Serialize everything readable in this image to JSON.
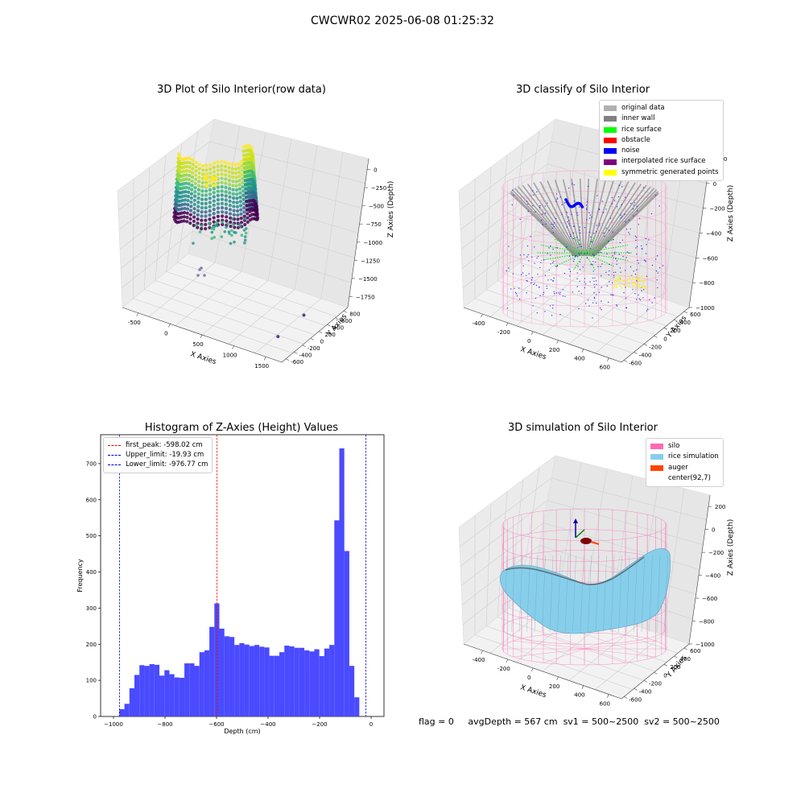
{
  "suptitle": "CWCWR02 2025-06-08 01:25:32",
  "status": {
    "flag": "flag = 0",
    "avg_depth": "avgDepth = 567 cm",
    "sv1": "sv1 = 500~2500",
    "sv2": "sv2 = 500~2500"
  },
  "colors": {
    "hist_bar": "#4a4aff",
    "first_peak": "#ff0000",
    "limit_lines": "#0000cc",
    "silo": "#ff69b4",
    "rice_simulation": "#87ceeb",
    "auger": "#ff4500",
    "original_data": "#b0b0b0",
    "inner_wall": "#808080",
    "rice_surface": "#00ff00",
    "obstacle": "#ff0000",
    "noise": "#0000ff",
    "interpolated_rice_surface": "#800080",
    "symmetric_generated_points": "#ffff00"
  },
  "chart_data": [
    {
      "type": "scatter",
      "title": "3D Plot of Silo Interior(row data)",
      "xlabel": "X Axies",
      "ylabel": "Y Axies",
      "zlabel": "Z Axies (Depth)",
      "x_ticks": [
        "-500",
        "0",
        "500",
        "1000",
        "1500"
      ],
      "y_ticks": [
        "-600",
        "-400",
        "-200",
        "0",
        "200",
        "400",
        "600",
        "800"
      ],
      "z_ticks": [
        "0",
        "−250",
        "−500",
        "−750",
        "−1000",
        "−1250",
        "−1500",
        "−1750"
      ],
      "xlim": [
        -750,
        1750
      ],
      "ylim": [
        -700,
        900
      ],
      "zlim": [
        -1900,
        150
      ],
      "colormap": "viridis",
      "outliers": [
        {
          "x": 1450,
          "y": 300,
          "z": -1780
        },
        {
          "x": 1400,
          "y": -250,
          "z": -1850
        }
      ]
    },
    {
      "type": "scatter",
      "title": "3D classify of Silo Interior",
      "xlabel": "X Axies",
      "ylabel": "Y Axies",
      "zlabel": "Z Axies (Depth)",
      "x_ticks": [
        "-400",
        "-200",
        "0",
        "200",
        "400",
        "600"
      ],
      "y_ticks": [
        "-600",
        "-400",
        "-200",
        "0",
        "200",
        "400",
        "600"
      ],
      "z_ticks": [
        "200",
        "0",
        "−200",
        "−400",
        "−600",
        "−800",
        "−1000"
      ],
      "xlim": [
        -550,
        700
      ],
      "ylim": [
        -650,
        700
      ],
      "zlim": [
        -1000,
        200
      ],
      "legend": [
        {
          "label": "original data",
          "color": "#b0b0b0"
        },
        {
          "label": "inner wall",
          "color": "#808080"
        },
        {
          "label": "rice surface",
          "color": "#00ff00"
        },
        {
          "label": "obstacle",
          "color": "#ff0000"
        },
        {
          "label": "noise",
          "color": "#0000ff"
        },
        {
          "label": "interpolated rice surface",
          "color": "#800080"
        },
        {
          "label": "symmetric generated points",
          "color": "#ffff00"
        }
      ],
      "legend_position": "top-right"
    },
    {
      "type": "bar",
      "title": "Histogram of Z-Axies (Height) Values",
      "xlabel": "Depth (cm)",
      "ylabel": "Frequency",
      "xlim": [
        -1050,
        50
      ],
      "ylim": [
        0,
        780
      ],
      "x_ticks": [
        -1000,
        -800,
        -600,
        -400,
        -200,
        0
      ],
      "x_tick_labels": [
        "−1000",
        "−800",
        "−600",
        "−400",
        "−200",
        "0"
      ],
      "y_ticks": [
        0,
        100,
        200,
        300,
        400,
        500,
        600,
        700
      ],
      "bin_start": -977,
      "bin_width": 19.4,
      "values": [
        20,
        35,
        78,
        115,
        142,
        140,
        145,
        143,
        113,
        128,
        117,
        108,
        107,
        147,
        147,
        140,
        178,
        183,
        248,
        313,
        243,
        222,
        220,
        198,
        203,
        199,
        195,
        198,
        193,
        191,
        168,
        168,
        178,
        196,
        194,
        190,
        190,
        183,
        180,
        186,
        167,
        188,
        198,
        543,
        742,
        458,
        140,
        53
      ],
      "lines": [
        {
          "label": "first_peak: -598.02 cm",
          "x": -598.02,
          "color": "#ff0000"
        },
        {
          "label": "Upper_limit: -19.93 cm",
          "x": -19.93,
          "color": "#0000cc"
        },
        {
          "label": "Lower_limit: -976.77 cm",
          "x": -976.77,
          "color": "#0000cc"
        }
      ],
      "legend_position": "top-left"
    },
    {
      "type": "scatter",
      "title": "3D simulation of Silo Interior",
      "xlabel": "X Axies",
      "ylabel": "Y Axies",
      "zlabel": "Z Axies (Depth)",
      "x_ticks": [
        "-400",
        "-200",
        "0",
        "200",
        "400",
        "600"
      ],
      "y_ticks": [
        "-600",
        "-400",
        "-200",
        "0",
        "200",
        "400",
        "600"
      ],
      "z_ticks": [
        "200",
        "0",
        "−200",
        "−400",
        "−600",
        "−800",
        "−1000"
      ],
      "xlim": [
        -550,
        700
      ],
      "ylim": [
        -650,
        700
      ],
      "zlim": [
        -1000,
        300
      ],
      "legend": [
        {
          "label": "silo",
          "color": "#ff69b4"
        },
        {
          "label": "rice simulation",
          "color": "#87ceeb"
        },
        {
          "label": "auger",
          "color": "#ff4500"
        },
        {
          "label": "center(92,7)",
          "color": ""
        }
      ],
      "legend_position": "top-right"
    }
  ]
}
